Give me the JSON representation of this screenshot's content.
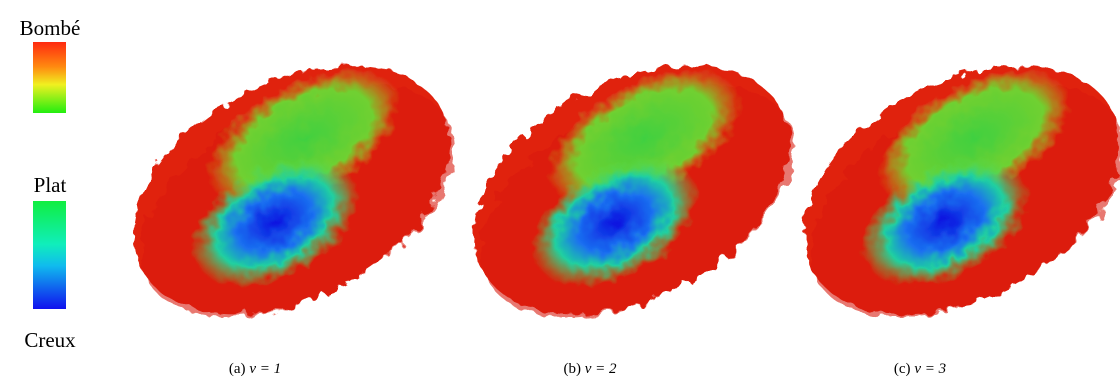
{
  "legend": {
    "top_label": "Bombé",
    "middle_label": "Plat",
    "bottom_label": "Creux"
  },
  "panels": [
    {
      "label": "(a)",
      "caption": "ν = 1"
    },
    {
      "label": "(b)",
      "caption": "ν = 2"
    },
    {
      "label": "(c)",
      "caption": "ν = 3"
    }
  ]
}
